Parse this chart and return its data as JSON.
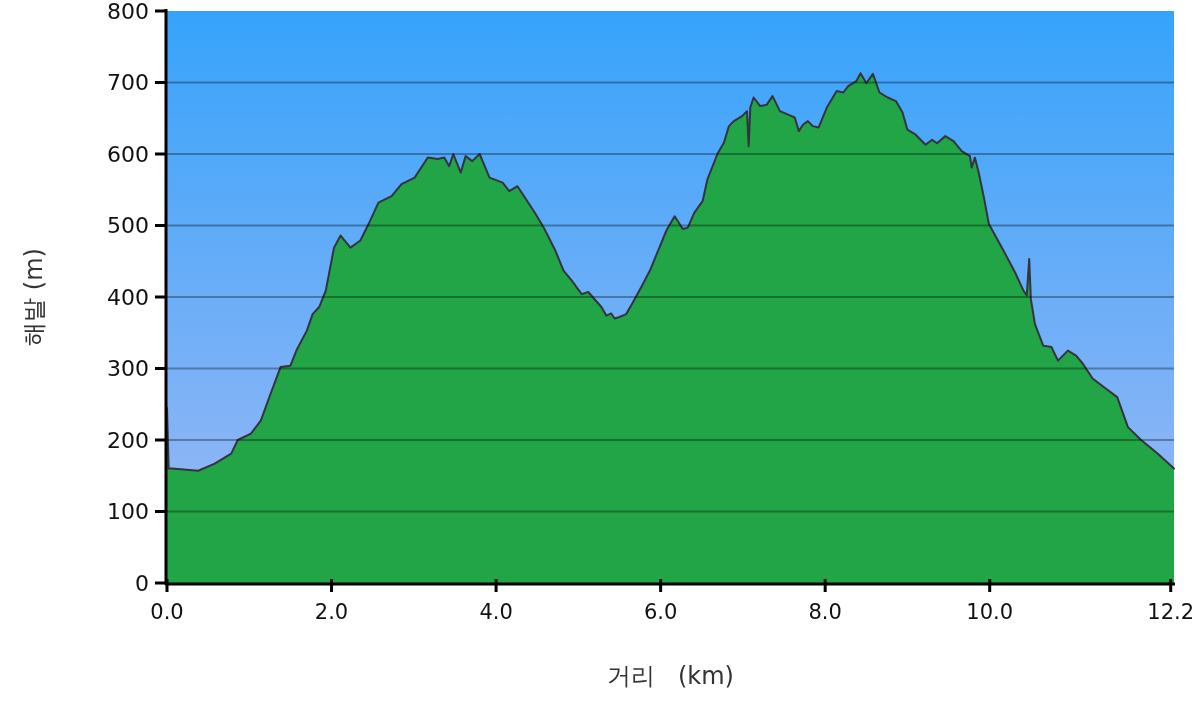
{
  "chart_data": {
    "type": "area",
    "xlabel": "거리   (km)",
    "ylabel": "해발 (m)",
    "xlim": [
      0,
      12.24
    ],
    "xticks": [
      {
        "value": 0,
        "label": "0.0"
      },
      {
        "value": 2,
        "label": "2.0"
      },
      {
        "value": 4,
        "label": "4.0"
      },
      {
        "value": 6,
        "label": "6.0"
      },
      {
        "value": 8,
        "label": "8.0"
      },
      {
        "value": 10,
        "label": "10.0"
      },
      {
        "value": 12.2,
        "label": "12.2"
      }
    ],
    "ylim": [
      0,
      800
    ],
    "yticks": [
      0,
      100,
      200,
      300,
      400,
      500,
      600,
      700,
      800
    ],
    "grid": "y",
    "x": [
      0,
      0.02,
      0.06,
      0.38,
      0.58,
      0.78,
      0.86,
      1.02,
      1.14,
      1.26,
      1.38,
      1.5,
      1.58,
      1.7,
      1.77,
      1.85,
      1.93,
      2.03,
      2.11,
      2.23,
      2.35,
      2.45,
      2.57,
      2.73,
      2.85,
      3.01,
      3.17,
      3.29,
      3.37,
      3.43,
      3.48,
      3.57,
      3.63,
      3.71,
      3.8,
      3.92,
      4.08,
      4.16,
      4.26,
      4.34,
      4.46,
      4.58,
      4.72,
      4.82,
      4.92,
      5.04,
      5.12,
      5.28,
      5.34,
      5.4,
      5.44,
      5.5,
      5.58,
      5.65,
      5.76,
      5.87,
      5.97,
      6.07,
      6.17,
      6.27,
      6.33,
      6.41,
      6.51,
      6.57,
      6.69,
      6.77,
      6.83,
      6.89,
      6.99,
      7.05,
      7.07,
      7.09,
      7.13,
      7.21,
      7.29,
      7.36,
      7.45,
      7.55,
      7.63,
      7.68,
      7.73,
      7.79,
      7.85,
      7.92,
      8.02,
      8.14,
      8.22,
      8.28,
      8.38,
      8.43,
      8.5,
      8.58,
      8.66,
      8.76,
      8.86,
      8.94,
      9.0,
      9.1,
      9.22,
      9.3,
      9.36,
      9.46,
      9.56,
      9.66,
      9.76,
      9.78,
      9.82,
      9.87,
      9.93,
      9.99,
      10.09,
      10.19,
      10.31,
      10.41,
      10.45,
      10.48,
      10.5,
      10.55,
      10.65,
      10.75,
      10.83,
      10.95,
      11.05,
      11.13,
      11.25,
      11.41,
      11.55,
      11.68,
      11.84,
      12.04,
      12.24
    ],
    "series": [
      {
        "color": "#22a546",
        "values": [
          245,
          160,
          160,
          157,
          167,
          181,
          200,
          209,
          227,
          265,
          302,
          304,
          327,
          353,
          376,
          386,
          409,
          469,
          486,
          469,
          479,
          502,
          532,
          541,
          558,
          567,
          595,
          593,
          595,
          583,
          600,
          574,
          597,
          590,
          600,
          567,
          560,
          548,
          555,
          541,
          520,
          497,
          465,
          437,
          423,
          404,
          407,
          386,
          374,
          377,
          370,
          372,
          376,
          390,
          413,
          437,
          465,
          493,
          513,
          495,
          497,
          518,
          534,
          565,
          600,
          616,
          639,
          646,
          653,
          660,
          611,
          665,
          679,
          667,
          669,
          681,
          660,
          655,
          651,
          632,
          641,
          646,
          639,
          637,
          665,
          688,
          686,
          695,
          702,
          713,
          699,
          712,
          686,
          679,
          674,
          658,
          634,
          627,
          613,
          620,
          615,
          625,
          618,
          604,
          597,
          581,
          595,
          572,
          539,
          502,
          481,
          460,
          434,
          409,
          402,
          453,
          397,
          362,
          332,
          330,
          311,
          325,
          318,
          307,
          286,
          272,
          260,
          218,
          200,
          181,
          160
        ]
      }
    ]
  }
}
